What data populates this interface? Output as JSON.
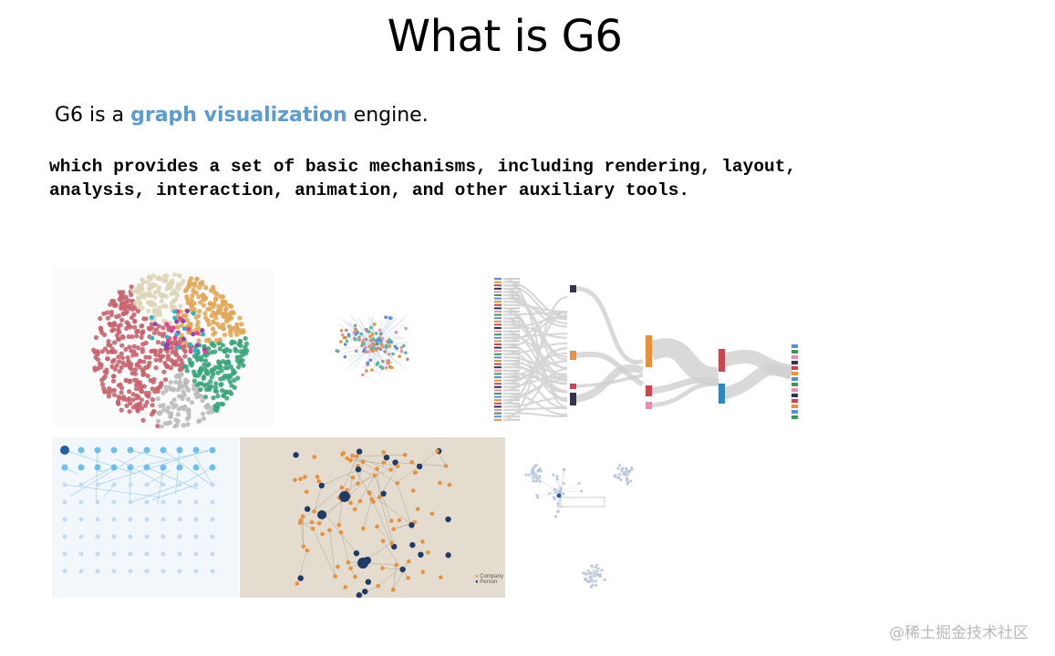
{
  "slide": {
    "title": "What is G6",
    "lead": {
      "prefix": "G6 is a ",
      "highlight": "graph visualization",
      "suffix": " engine."
    },
    "description_lines": [
      "which provides a set of basic mechanisms, including rendering, layout,",
      "analysis, interaction, animation, and other auxiliary tools."
    ],
    "colors": {
      "highlight": "#5b9bd5",
      "company": "#e8913a",
      "person": "#1f3a66"
    }
  },
  "gallery": {
    "cluster_graph": {
      "icon": "cluster-graph-image"
    },
    "small_graph": {
      "icon": "network-graph-image"
    },
    "sankey": {
      "icon": "sankey-diagram-image"
    },
    "grid_graph": {
      "icon": "grid-graph-image"
    },
    "company_graph": {
      "icon": "knowledge-graph-image",
      "legend": [
        "Company",
        "Person"
      ]
    },
    "tree_graph": {
      "icon": "sparse-graph-image"
    }
  },
  "watermark": "@稀土掘金技术社区"
}
